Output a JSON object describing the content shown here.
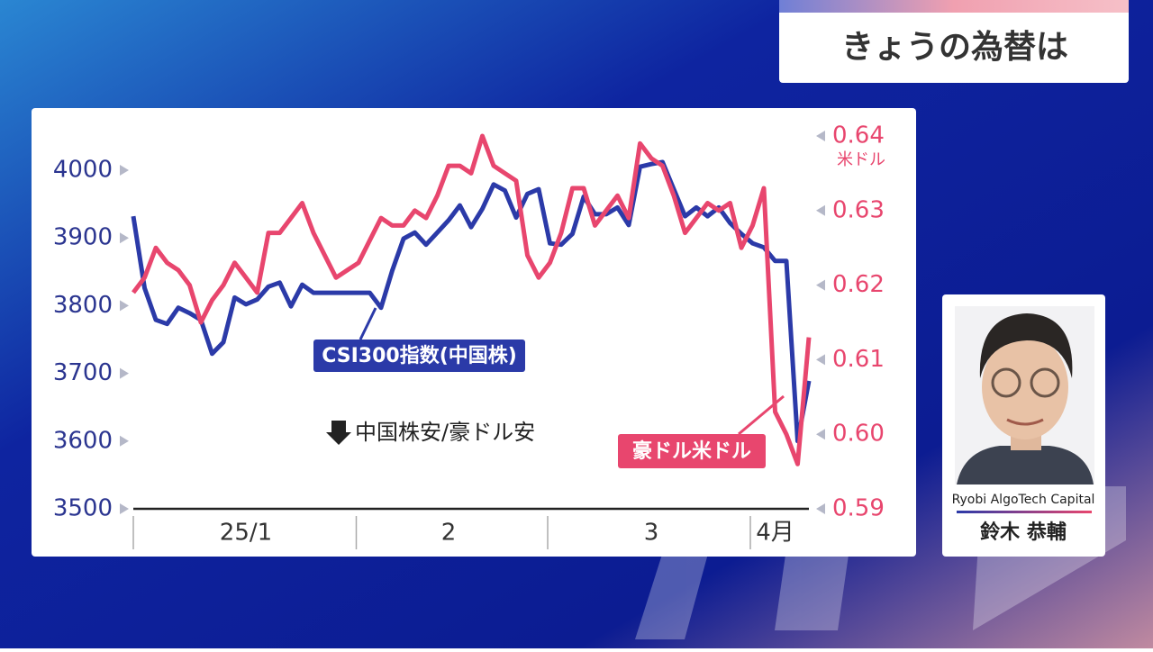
{
  "header": {
    "title": "きょうの為替は"
  },
  "guest": {
    "company": "Ryobi AlgoTech Capital",
    "name": "鈴木 恭輔"
  },
  "chart_data": {
    "type": "line",
    "categories": [
      null,
      null,
      null,
      null,
      null,
      null,
      null,
      null,
      null,
      null,
      "25/1",
      null,
      null,
      null,
      null,
      null,
      null,
      null,
      null,
      null,
      null,
      null,
      null,
      null,
      null,
      null,
      null,
      null,
      "2",
      null,
      null,
      null,
      null,
      null,
      null,
      null,
      null,
      null,
      null,
      null,
      null,
      null,
      null,
      null,
      null,
      null,
      "3",
      null,
      null,
      null,
      null,
      null,
      null,
      null,
      null,
      null,
      null,
      "4月",
      null,
      null,
      null
    ],
    "series": [
      {
        "name": "CSI300指数(中国株)",
        "color": "#2b3aa8",
        "axis": "y",
        "values": [
          3932,
          3826,
          3779,
          3773,
          3797,
          3789,
          3779,
          3729,
          3746,
          3812,
          3802,
          3809,
          3828,
          3834,
          3799,
          3831,
          3819,
          3819,
          3819,
          3819,
          3819,
          3819,
          3797,
          3852,
          3899,
          3908,
          3890,
          3908,
          3926,
          3948,
          3916,
          3943,
          3979,
          3970,
          3930,
          3965,
          3972,
          3892,
          3890,
          3906,
          3961,
          3935,
          3935,
          3945,
          3919,
          4005,
          4009,
          4012,
          3972,
          3932,
          3945,
          3932,
          3945,
          3922,
          3906,
          3892,
          3886,
          3866,
          3866,
          3600,
          3689
        ]
      },
      {
        "name": "豪ドル米ドル",
        "color": "#e8466e",
        "axis": "y2",
        "values": [
          0.619,
          0.621,
          0.625,
          0.623,
          0.622,
          0.62,
          0.615,
          0.618,
          0.62,
          0.623,
          0.621,
          0.619,
          0.627,
          0.627,
          0.629,
          0.631,
          0.627,
          0.624,
          0.621,
          0.622,
          0.623,
          0.626,
          0.629,
          0.628,
          0.628,
          0.63,
          0.629,
          0.632,
          0.636,
          0.636,
          0.635,
          0.64,
          0.636,
          0.635,
          0.634,
          0.624,
          0.621,
          0.623,
          0.627,
          0.633,
          0.633,
          0.628,
          0.63,
          0.632,
          0.629,
          0.639,
          0.637,
          0.636,
          0.632,
          0.627,
          0.629,
          0.631,
          0.63,
          0.631,
          0.625,
          0.628,
          0.633,
          0.603,
          0.6,
          0.596,
          0.613
        ]
      }
    ],
    "ylim": [
      3500,
      4000
    ],
    "yticks": [
      3500,
      3600,
      3700,
      3800,
      3900,
      4000
    ],
    "y2lim": [
      0.59,
      0.64
    ],
    "y2ticks": [
      0.59,
      {
        "value": 0.6,
        "label": "0.60"
      },
      0.61,
      0.62,
      0.63,
      0.64
    ],
    "y2_unit": "米ドル",
    "annotation": "中国株安/豪ドル安"
  }
}
